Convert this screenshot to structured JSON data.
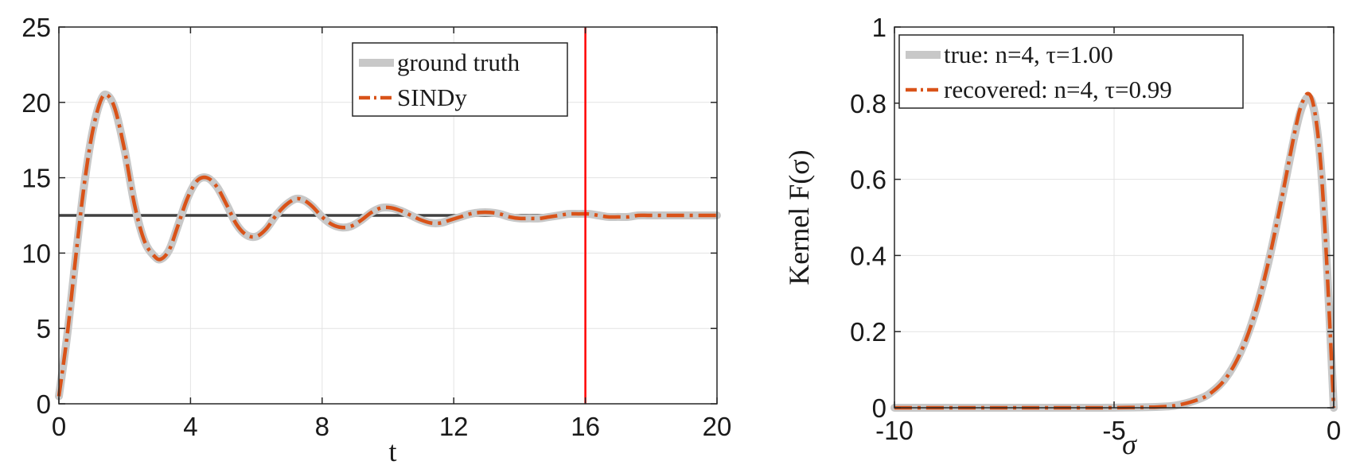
{
  "chart_data": [
    {
      "type": "line",
      "xlabel": "t",
      "ylabel": "",
      "xlim": [
        0,
        20
      ],
      "ylim": [
        0,
        25
      ],
      "xticks": [
        "0",
        "4",
        "8",
        "12",
        "16",
        "20"
      ],
      "yticks": [
        "0",
        "5",
        "10",
        "15",
        "20",
        "25"
      ],
      "grid": true,
      "legend_position": "top-right",
      "series": [
        {
          "name": "ground truth",
          "style": "solid-thick",
          "color": "#c8c8c8",
          "x": [
            0,
            0.25,
            0.5,
            0.75,
            1.0,
            1.25,
            1.45,
            1.7,
            2.0,
            2.3,
            2.6,
            2.9,
            3.1,
            3.35,
            3.6,
            3.9,
            4.2,
            4.5,
            4.8,
            5.1,
            5.4,
            5.7,
            6.0,
            6.3,
            6.6,
            6.9,
            7.2,
            7.45,
            7.7,
            8.0,
            8.3,
            8.6,
            8.9,
            9.2,
            9.5,
            9.8,
            10.1,
            10.4,
            10.7,
            11.0,
            11.3,
            11.6,
            11.9,
            12.2,
            12.5,
            12.8,
            13.1,
            13.4,
            13.7,
            14.0,
            14.3,
            14.6,
            14.9,
            15.2,
            15.5,
            15.8,
            16.1,
            16.4,
            16.7,
            17.0,
            17.3,
            17.6,
            17.9,
            18.2,
            18.5,
            18.8,
            19.1,
            19.4,
            19.7,
            20.0
          ],
          "y": [
            0.5,
            4.5,
            9.5,
            14.2,
            17.8,
            20.0,
            20.5,
            19.6,
            16.8,
            13.2,
            10.8,
            9.8,
            9.6,
            10.2,
            11.7,
            13.6,
            14.8,
            15.0,
            14.4,
            13.2,
            11.9,
            11.2,
            11.1,
            11.6,
            12.5,
            13.2,
            13.6,
            13.5,
            13.1,
            12.4,
            11.9,
            11.7,
            11.8,
            12.2,
            12.7,
            13.0,
            13.0,
            12.8,
            12.5,
            12.2,
            12.0,
            12.0,
            12.2,
            12.4,
            12.6,
            12.7,
            12.7,
            12.6,
            12.4,
            12.3,
            12.3,
            12.3,
            12.4,
            12.5,
            12.6,
            12.6,
            12.6,
            12.5,
            12.4,
            12.4,
            12.4,
            12.5,
            12.5,
            12.5,
            12.5,
            12.5,
            12.5,
            12.5,
            12.5,
            12.5
          ]
        },
        {
          "name": "SINDy",
          "style": "dash-dot",
          "color": "#d95319",
          "x": [
            0,
            0.25,
            0.5,
            0.75,
            1.0,
            1.25,
            1.45,
            1.7,
            2.0,
            2.3,
            2.6,
            2.9,
            3.1,
            3.35,
            3.6,
            3.9,
            4.2,
            4.5,
            4.8,
            5.1,
            5.4,
            5.7,
            6.0,
            6.3,
            6.6,
            6.9,
            7.2,
            7.45,
            7.7,
            8.0,
            8.3,
            8.6,
            8.9,
            9.2,
            9.5,
            9.8,
            10.1,
            10.4,
            10.7,
            11.0,
            11.3,
            11.6,
            11.9,
            12.2,
            12.5,
            12.8,
            13.1,
            13.4,
            13.7,
            14.0,
            14.3,
            14.6,
            14.9,
            15.2,
            15.5,
            15.8,
            16.1,
            16.4,
            16.7,
            17.0,
            17.3,
            17.6,
            17.9,
            18.2,
            18.5,
            18.8,
            19.1,
            19.4,
            19.7,
            20.0
          ],
          "y": [
            0.5,
            4.5,
            9.5,
            14.2,
            17.8,
            20.0,
            20.5,
            19.6,
            16.8,
            13.2,
            10.8,
            9.8,
            9.6,
            10.2,
            11.7,
            13.6,
            14.8,
            15.0,
            14.4,
            13.2,
            11.9,
            11.2,
            11.1,
            11.6,
            12.5,
            13.2,
            13.6,
            13.5,
            13.1,
            12.4,
            11.9,
            11.7,
            11.8,
            12.2,
            12.7,
            13.0,
            13.0,
            12.8,
            12.5,
            12.2,
            12.0,
            12.0,
            12.2,
            12.4,
            12.6,
            12.7,
            12.7,
            12.6,
            12.4,
            12.3,
            12.3,
            12.3,
            12.4,
            12.5,
            12.6,
            12.6,
            12.6,
            12.5,
            12.4,
            12.4,
            12.4,
            12.5,
            12.5,
            12.5,
            12.5,
            12.5,
            12.5,
            12.5,
            12.5,
            12.5
          ]
        }
      ],
      "reference_lines": [
        {
          "orientation": "horizontal",
          "value": 12.5,
          "color": "#404040"
        },
        {
          "orientation": "vertical",
          "value": 16,
          "color": "#ff0000"
        }
      ]
    },
    {
      "type": "line",
      "xlabel": "σ",
      "ylabel": "Kernel F(σ)",
      "xlim": [
        -10,
        0
      ],
      "ylim": [
        0,
        1
      ],
      "xticks": [
        "-10",
        "-5",
        "0"
      ],
      "yticks": [
        "0",
        "0.2",
        "0.4",
        "0.6",
        "0.8",
        "1"
      ],
      "grid": true,
      "legend_position": "top-left",
      "series": [
        {
          "name": "true: n=4, τ=1.00",
          "style": "solid-thick",
          "color": "#c8c8c8",
          "x": [
            -10,
            -8,
            -6,
            -5,
            -4,
            -3.5,
            -3.0,
            -2.75,
            -2.5,
            -2.25,
            -2.0,
            -1.75,
            -1.5,
            -1.25,
            -1.0,
            -0.9,
            -0.8,
            -0.75,
            -0.7,
            -0.6,
            -0.5,
            -0.4,
            -0.3,
            -0.2,
            -0.1,
            -0.05,
            0
          ],
          "y": [
            0,
            0,
            0,
            0.0003,
            0.0023,
            0.008,
            0.026,
            0.044,
            0.072,
            0.116,
            0.179,
            0.265,
            0.375,
            0.508,
            0.652,
            0.709,
            0.76,
            0.78,
            0.796,
            0.815,
            0.805,
            0.75,
            0.645,
            0.472,
            0.247,
            0.125,
            0
          ]
        },
        {
          "name": "recovered: n=4, τ=0.99",
          "style": "dash-dot",
          "color": "#d95319",
          "x": [
            -10,
            -8,
            -6,
            -5,
            -4,
            -3.5,
            -3.0,
            -2.75,
            -2.5,
            -2.25,
            -2.0,
            -1.75,
            -1.5,
            -1.25,
            -1.0,
            -0.9,
            -0.8,
            -0.75,
            -0.7,
            -0.6,
            -0.5,
            -0.4,
            -0.3,
            -0.2,
            -0.1,
            -0.05,
            0
          ],
          "y": [
            0,
            0,
            0,
            0.0003,
            0.0022,
            0.008,
            0.025,
            0.043,
            0.071,
            0.115,
            0.178,
            0.265,
            0.376,
            0.511,
            0.658,
            0.717,
            0.77,
            0.79,
            0.806,
            0.825,
            0.812,
            0.754,
            0.646,
            0.47,
            0.244,
            0.123,
            0
          ]
        }
      ]
    }
  ]
}
